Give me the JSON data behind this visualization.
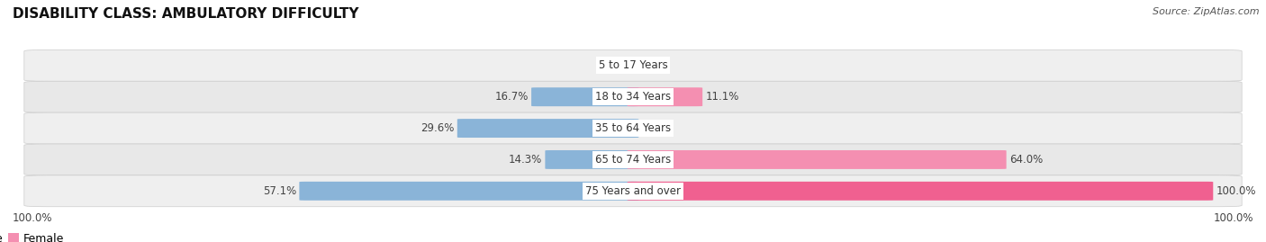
{
  "title": "DISABILITY CLASS: AMBULATORY DIFFICULTY",
  "source": "Source: ZipAtlas.com",
  "categories": [
    "5 to 17 Years",
    "18 to 34 Years",
    "35 to 64 Years",
    "65 to 74 Years",
    "75 Years and over"
  ],
  "male_values": [
    0.0,
    16.7,
    29.6,
    14.3,
    57.1
  ],
  "female_values": [
    0.0,
    11.1,
    0.0,
    64.0,
    100.0
  ],
  "male_color": "#8ab4d8",
  "female_color": "#f48fb1",
  "female_color_bright": "#f06090",
  "row_bg_color_odd": "#efefef",
  "row_bg_color_even": "#e8e8e8",
  "max_value": 100.0,
  "title_fontsize": 11,
  "label_fontsize": 8.5,
  "legend_fontsize": 9,
  "bar_height": 0.58,
  "source_fontsize": 8
}
